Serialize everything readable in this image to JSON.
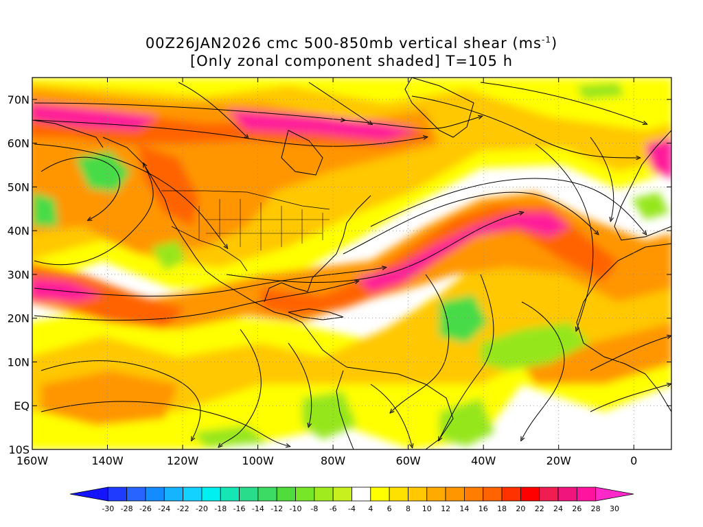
{
  "title": {
    "line1_main": "00Z26JAN2026 cmc 500-850mb vertical shear (ms",
    "line1_sup": "-1",
    "line1_close": ")",
    "line2": "[Only zonal component shaded] T=105 h"
  },
  "map": {
    "lat_labels": [
      "70N",
      "60N",
      "50N",
      "40N",
      "30N",
      "20N",
      "10N",
      "EQ",
      "10S"
    ],
    "lat_values": [
      70,
      60,
      50,
      40,
      30,
      20,
      10,
      0,
      -10
    ],
    "lon_labels": [
      "160W",
      "140W",
      "120W",
      "100W",
      "80W",
      "60W",
      "40W",
      "20W",
      "0"
    ],
    "lon_values": [
      -160,
      -140,
      -120,
      -100,
      -80,
      -60,
      -40,
      -20,
      0
    ],
    "lon_range": [
      -160,
      10
    ],
    "lat_range": [
      -10,
      75
    ],
    "grid": "dotted"
  },
  "colorbar": {
    "labels": [
      "-30",
      "-28",
      "-26",
      "-24",
      "-22",
      "-20",
      "-18",
      "-16",
      "-14",
      "-12",
      "-10",
      "-8",
      "-6",
      "-4",
      "4",
      "6",
      "8",
      "10",
      "12",
      "14",
      "16",
      "18",
      "20",
      "22",
      "24",
      "26",
      "28",
      "30"
    ],
    "colors": [
      "#1414ff",
      "#1e3cff",
      "#2864ff",
      "#148cff",
      "#14b4ff",
      "#14d2ff",
      "#00f0f0",
      "#14e6b4",
      "#28dc8c",
      "#3cdc64",
      "#50dc3c",
      "#78e628",
      "#a0eb1e",
      "#c8f01e",
      "#ffffff",
      "#ffff00",
      "#ffe100",
      "#ffc800",
      "#ffaa00",
      "#ff9600",
      "#ff7d00",
      "#ff6400",
      "#ff3200",
      "#ff0000",
      "#f01e50",
      "#f0147d",
      "#ff14a0",
      "#ff28c8"
    ]
  },
  "shading_colors": {
    "shade_6": "#ffff00",
    "shade_10": "#ffc800",
    "shade_14": "#ff9600",
    "shade_18": "#ff6400",
    "shade_22": "#ff3a2a",
    "shade_28": "#ff1e9a",
    "neg_6": "#96e61e",
    "neg_10": "#46dc46"
  }
}
